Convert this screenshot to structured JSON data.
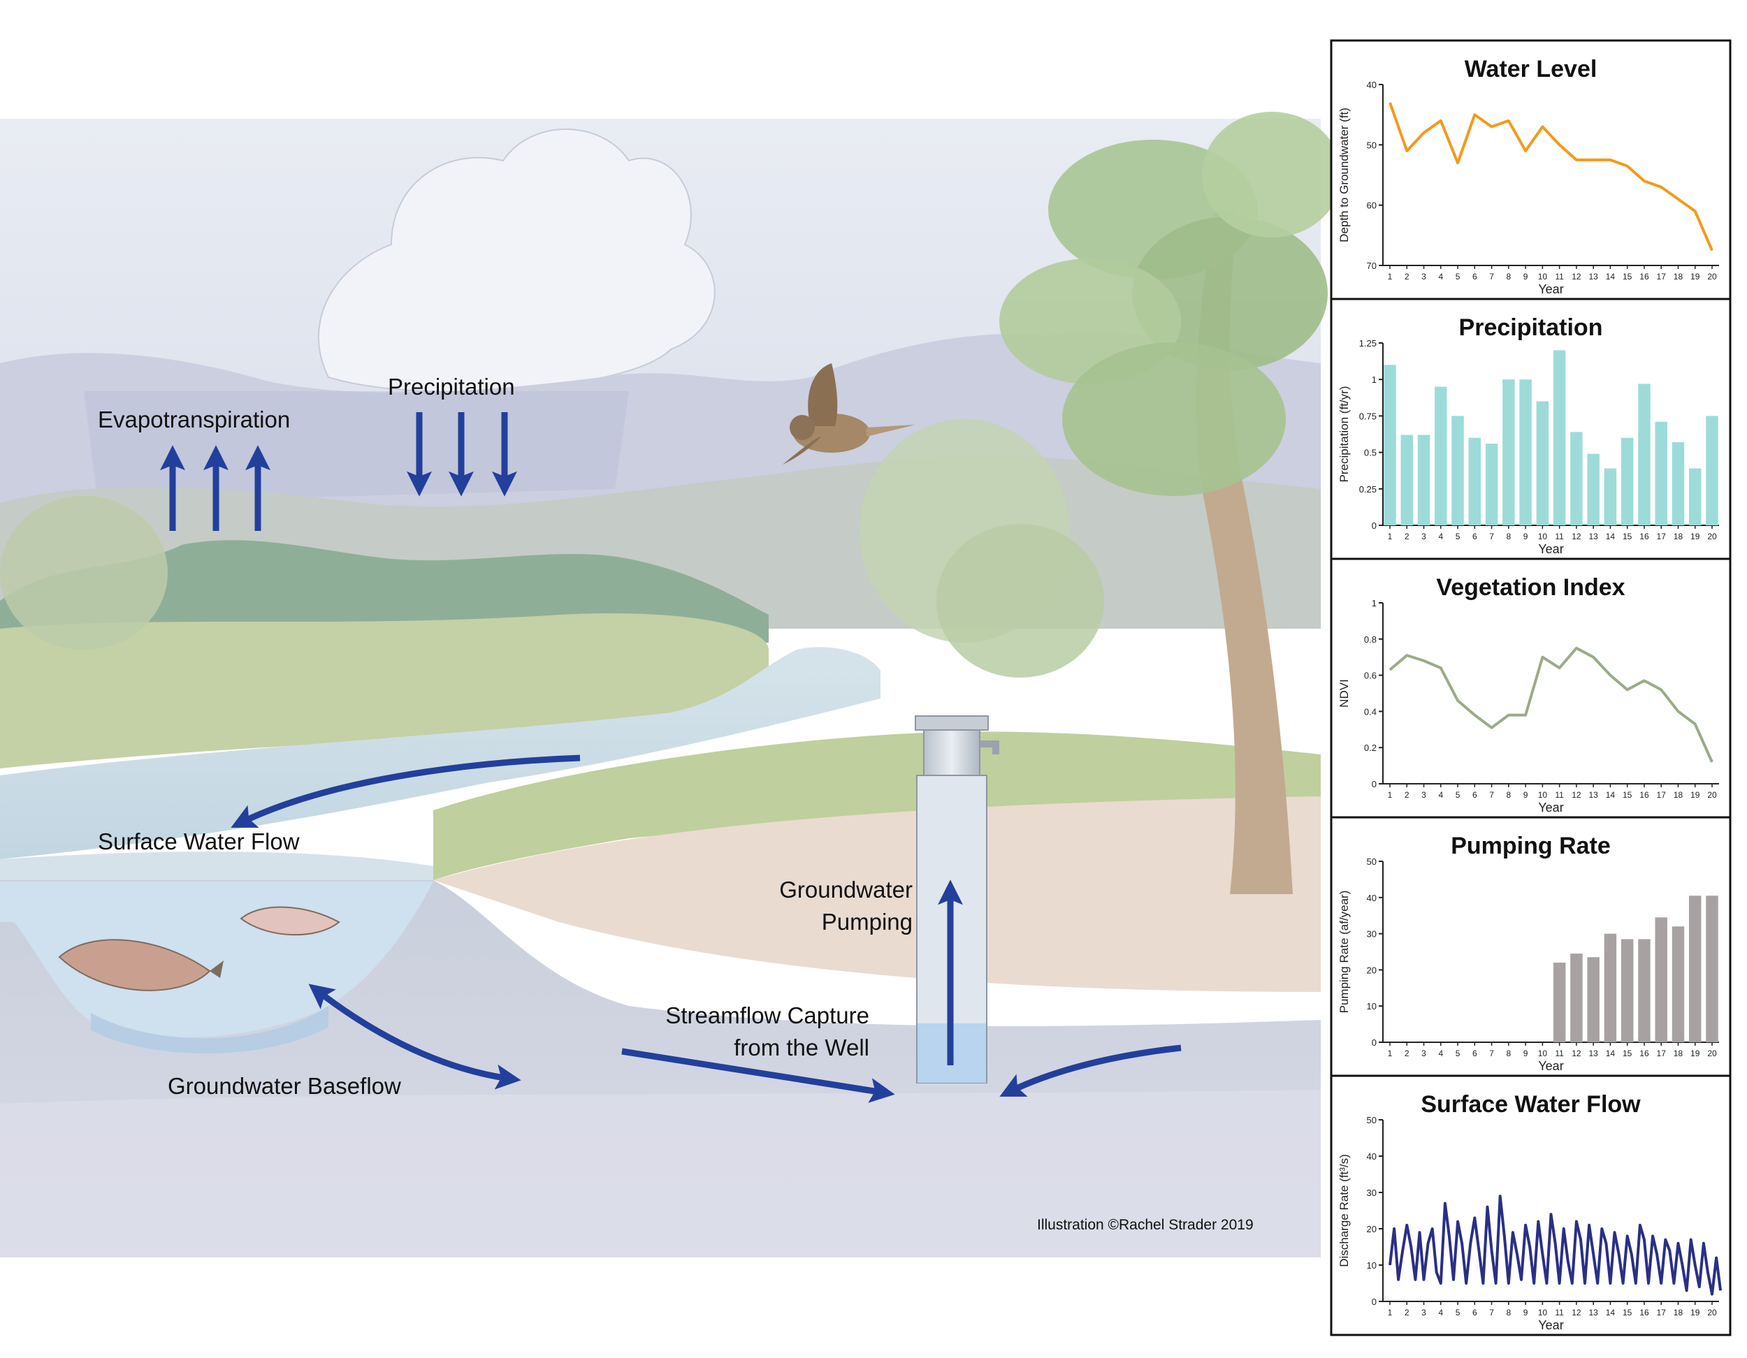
{
  "illustration": {
    "labels": {
      "evapotranspiration": "Evapotranspiration",
      "precipitation": "Precipitation",
      "surface_water_flow": "Surface Water Flow",
      "groundwater_pumping_1": "Groundwater",
      "groundwater_pumping_2": "Pumping",
      "groundwater_baseflow": "Groundwater Baseflow",
      "streamflow_capture_1": "Streamflow Capture",
      "streamflow_capture_2": "from the Well",
      "credit": "Illustration ©Rachel Strader 2019"
    },
    "arrow_color": "#233f9c"
  },
  "chart_data": [
    {
      "type": "line",
      "title": "Water Level",
      "ylabel": "Depth to Groundwater (ft)",
      "xlabel": "Year",
      "x": [
        1,
        2,
        3,
        4,
        5,
        6,
        7,
        8,
        9,
        10,
        11,
        12,
        13,
        14,
        15,
        16,
        17,
        18,
        19,
        20
      ],
      "values": [
        43,
        51,
        48,
        46,
        53,
        45,
        47,
        46,
        51,
        47,
        50,
        52.5,
        52.5,
        52.5,
        53.5,
        56,
        57,
        59,
        61,
        67.5
      ],
      "ylim": [
        40,
        70
      ],
      "y_inverted": true,
      "yticks": [
        "40",
        "50",
        "60",
        "70"
      ],
      "color": "#f29a1e"
    },
    {
      "type": "bar",
      "title": "Precipitation",
      "ylabel": "Precipitation (ft/yr)",
      "xlabel": "Year",
      "x": [
        1,
        2,
        3,
        4,
        5,
        6,
        7,
        8,
        9,
        10,
        11,
        12,
        13,
        14,
        15,
        16,
        17,
        18,
        19,
        20
      ],
      "values": [
        1.1,
        0.62,
        0.62,
        0.95,
        0.75,
        0.6,
        0.56,
        1.0,
        1.0,
        0.85,
        1.2,
        0.64,
        0.49,
        0.39,
        0.6,
        0.97,
        0.71,
        0.57,
        0.39,
        0.75
      ],
      "ylim": [
        0,
        1.25
      ],
      "yticks": [
        "0",
        "0.25",
        "0.5",
        "0.75",
        "1",
        "1.25"
      ],
      "color": "#9ddbd9"
    },
    {
      "type": "line",
      "title": "Vegetation Index",
      "ylabel": "NDVI",
      "xlabel": "Year",
      "x": [
        1,
        2,
        3,
        4,
        5,
        6,
        7,
        8,
        9,
        10,
        11,
        12,
        13,
        14,
        15,
        16,
        17,
        18,
        19,
        20
      ],
      "values": [
        0.63,
        0.71,
        0.68,
        0.64,
        0.46,
        0.38,
        0.31,
        0.38,
        0.38,
        0.7,
        0.64,
        0.75,
        0.7,
        0.6,
        0.52,
        0.57,
        0.52,
        0.4,
        0.33,
        0.12
      ],
      "ylim": [
        0,
        1
      ],
      "yticks": [
        "0",
        "0.2",
        "0.4",
        "0.6",
        "0.8",
        "1"
      ],
      "color": "#9cab88"
    },
    {
      "type": "bar",
      "title": "Pumping Rate",
      "ylabel": "Pumping Rate (af/year)",
      "xlabel": "Year",
      "x": [
        1,
        2,
        3,
        4,
        5,
        6,
        7,
        8,
        9,
        10,
        11,
        12,
        13,
        14,
        15,
        16,
        17,
        18,
        19,
        20
      ],
      "values": [
        0,
        0,
        0,
        0,
        0,
        0,
        0,
        0,
        0,
        0,
        22,
        24.5,
        23.5,
        30,
        28.5,
        28.5,
        34.5,
        32,
        40.5,
        40.5
      ],
      "ylim": [
        0,
        50
      ],
      "yticks": [
        "0",
        "10",
        "20",
        "30",
        "40",
        "50"
      ],
      "color": "#a8a1a2"
    },
    {
      "type": "line",
      "title": "Surface Water Flow",
      "ylabel": "Discharge Rate (ft³/s)",
      "xlabel": "Year",
      "x": [
        1,
        1.25,
        1.5,
        1.75,
        2,
        2.25,
        2.5,
        2.75,
        3,
        3.25,
        3.5,
        3.75,
        4,
        4.25,
        4.5,
        4.75,
        5,
        5.25,
        5.5,
        5.75,
        6,
        6.25,
        6.5,
        6.75,
        7,
        7.25,
        7.5,
        7.75,
        8,
        8.25,
        8.5,
        8.75,
        9,
        9.25,
        9.5,
        9.75,
        10,
        10.25,
        10.5,
        10.75,
        11,
        11.25,
        11.5,
        11.75,
        12,
        12.25,
        12.5,
        12.75,
        13,
        13.25,
        13.5,
        13.75,
        14,
        14.25,
        14.5,
        14.75,
        15,
        15.25,
        15.5,
        15.75,
        16,
        16.25,
        16.5,
        16.75,
        17,
        17.25,
        17.5,
        17.75,
        18,
        18.25,
        18.5,
        18.75,
        19,
        19.25,
        19.5,
        19.75,
        20,
        20.25,
        20.5
      ],
      "values": [
        10,
        20,
        6,
        14,
        21,
        15,
        6,
        19,
        6,
        16,
        20,
        8,
        5,
        27,
        18,
        6,
        22,
        16,
        5,
        16,
        23,
        14,
        5,
        26,
        14,
        5,
        29,
        18,
        5,
        19,
        13,
        6,
        21,
        15,
        5,
        22,
        13,
        5,
        24,
        16,
        5,
        20,
        11,
        5,
        22,
        17,
        5,
        21,
        13,
        5,
        20,
        16,
        5,
        19,
        13,
        5,
        18,
        13,
        5,
        21,
        17,
        5,
        18,
        13,
        5,
        17,
        14,
        5,
        16,
        10,
        3,
        17,
        10,
        4,
        16,
        8,
        2,
        12,
        3
      ],
      "ylim": [
        0,
        50
      ],
      "yticks": [
        "0",
        "10",
        "20",
        "30",
        "40",
        "50"
      ],
      "color": "#2a2f86"
    }
  ]
}
